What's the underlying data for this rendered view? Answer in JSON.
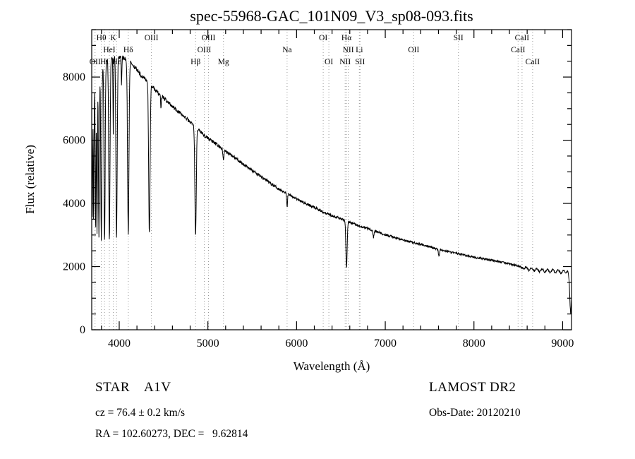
{
  "footer": {
    "class_label": "STAR    A1V",
    "cz": "cz = 76.4 ± 0.2 km/s",
    "radec": "RA = 102.60273, DEC =   9.62814",
    "survey": "LAMOST DR2",
    "obs_date": "Obs-Date: 20120210"
  },
  "chart_data": {
    "type": "line",
    "title": "spec-55968-GAC_101N09_V3_sp08-093.fits",
    "xlabel": "Wavelength (Å)",
    "ylabel": "Flux (relative)",
    "xlim": [
      3690,
      9100
    ],
    "ylim": [
      0,
      9500
    ],
    "x_major_ticks": [
      4000,
      5000,
      6000,
      7000,
      8000,
      9000
    ],
    "x_minor_step": 200,
    "y_major_ticks": [
      0,
      2000,
      4000,
      6000,
      8000
    ],
    "y_minor_step": 500,
    "grid": false,
    "line_color": "#000000",
    "guide_line_color": "#999999",
    "spectral_line_annotations": [
      {
        "label": "Hθ",
        "wavelength": 3798,
        "row": 0
      },
      {
        "label": "K",
        "wavelength": 3933,
        "row": 0
      },
      {
        "label": "OIII",
        "wavelength": 4363,
        "row": 0
      },
      {
        "label": "OIII",
        "wavelength": 5007,
        "row": 0
      },
      {
        "label": "OI",
        "wavelength": 6300,
        "row": 0
      },
      {
        "label": "Hα",
        "wavelength": 6563,
        "row": 0
      },
      {
        "label": "SII",
        "wavelength": 7825,
        "row": 0
      },
      {
        "label": "CaII",
        "wavelength": 8542,
        "row": 0
      },
      {
        "label": "HeI",
        "wavelength": 3889,
        "row": 1
      },
      {
        "label": "Hδ",
        "wavelength": 4102,
        "row": 1
      },
      {
        "label": "OIII",
        "wavelength": 4959,
        "row": 1
      },
      {
        "label": "Na",
        "wavelength": 5893,
        "row": 1
      },
      {
        "label": "NII",
        "wavelength": 6583,
        "row": 1
      },
      {
        "label": "Li",
        "wavelength": 6708,
        "row": 1
      },
      {
        "label": "OII",
        "wavelength": 7320,
        "row": 1
      },
      {
        "label": "CaII",
        "wavelength": 8498,
        "row": 1
      },
      {
        "label": "OII",
        "wavelength": 3727,
        "row": 2
      },
      {
        "label": "HI",
        "wavelength": 3835,
        "row": 2
      },
      {
        "label": "Hε",
        "wavelength": 3970,
        "row": 2
      },
      {
        "label": "Hβ",
        "wavelength": 4861,
        "row": 2
      },
      {
        "label": "Mg",
        "wavelength": 5175,
        "row": 2
      },
      {
        "label": "OI",
        "wavelength": 6364,
        "row": 2
      },
      {
        "label": "NII",
        "wavelength": 6548,
        "row": 2
      },
      {
        "label": "SII",
        "wavelength": 6716,
        "row": 2
      },
      {
        "label": "CaII",
        "wavelength": 8662,
        "row": 2
      }
    ],
    "series": [
      {
        "name": "spectrum",
        "sample_step_angstrom": 3,
        "noise_amplitude": 45,
        "continuum_points": [
          [
            3690,
            6600
          ],
          [
            3710,
            7400
          ],
          [
            3730,
            7800
          ],
          [
            3750,
            8000
          ],
          [
            3775,
            8150
          ],
          [
            3800,
            8300
          ],
          [
            3830,
            8420
          ],
          [
            3860,
            8520
          ],
          [
            3900,
            8600
          ],
          [
            3950,
            8650
          ],
          [
            4000,
            8650
          ],
          [
            4060,
            8600
          ],
          [
            4120,
            8500
          ],
          [
            4180,
            8300
          ],
          [
            4240,
            8060
          ],
          [
            4300,
            7920
          ],
          [
            4360,
            7740
          ],
          [
            4420,
            7550
          ],
          [
            4480,
            7380
          ],
          [
            4540,
            7230
          ],
          [
            4600,
            7080
          ],
          [
            4660,
            6930
          ],
          [
            4720,
            6780
          ],
          [
            4780,
            6630
          ],
          [
            4840,
            6480
          ],
          [
            4900,
            6320
          ],
          [
            4960,
            6150
          ],
          [
            5020,
            6030
          ],
          [
            5080,
            5900
          ],
          [
            5140,
            5780
          ],
          [
            5200,
            5650
          ],
          [
            5260,
            5530
          ],
          [
            5320,
            5410
          ],
          [
            5380,
            5290
          ],
          [
            5440,
            5160
          ],
          [
            5500,
            5040
          ],
          [
            5560,
            4920
          ],
          [
            5620,
            4810
          ],
          [
            5680,
            4690
          ],
          [
            5740,
            4570
          ],
          [
            5800,
            4460
          ],
          [
            5860,
            4370
          ],
          [
            5920,
            4280
          ],
          [
            5980,
            4180
          ],
          [
            6040,
            4080
          ],
          [
            6100,
            4000
          ],
          [
            6160,
            3920
          ],
          [
            6220,
            3850
          ],
          [
            6280,
            3760
          ],
          [
            6340,
            3690
          ],
          [
            6400,
            3620
          ],
          [
            6460,
            3560
          ],
          [
            6520,
            3490
          ],
          [
            6580,
            3420
          ],
          [
            6640,
            3360
          ],
          [
            6700,
            3300
          ],
          [
            6760,
            3240
          ],
          [
            6820,
            3190
          ],
          [
            6880,
            3130
          ],
          [
            6940,
            3070
          ],
          [
            7000,
            3010
          ],
          [
            7080,
            2940
          ],
          [
            7160,
            2870
          ],
          [
            7240,
            2810
          ],
          [
            7320,
            2760
          ],
          [
            7400,
            2700
          ],
          [
            7480,
            2640
          ],
          [
            7560,
            2580
          ],
          [
            7640,
            2520
          ],
          [
            7720,
            2470
          ],
          [
            7800,
            2420
          ],
          [
            7880,
            2370
          ],
          [
            7960,
            2320
          ],
          [
            8040,
            2280
          ],
          [
            8120,
            2240
          ],
          [
            8200,
            2200
          ],
          [
            8280,
            2160
          ],
          [
            8360,
            2110
          ],
          [
            8440,
            2060
          ],
          [
            8520,
            2000
          ],
          [
            8560,
            1930
          ],
          [
            8590,
            1990
          ],
          [
            8620,
            1870
          ],
          [
            8650,
            1970
          ],
          [
            8680,
            1850
          ],
          [
            8710,
            1950
          ],
          [
            8740,
            1830
          ],
          [
            8770,
            1940
          ],
          [
            8800,
            1810
          ],
          [
            8830,
            1930
          ],
          [
            8860,
            1790
          ],
          [
            8890,
            1920
          ],
          [
            8920,
            1780
          ],
          [
            8950,
            1910
          ],
          [
            8980,
            1770
          ],
          [
            9010,
            1890
          ],
          [
            9040,
            1800
          ],
          [
            9060,
            1870
          ],
          [
            9075,
            1500
          ],
          [
            9085,
            700
          ],
          [
            9092,
            450
          ],
          [
            9100,
            1000
          ]
        ],
        "absorption_lines": [
          {
            "center": 3697,
            "depth": 0.5,
            "width": 5
          },
          {
            "center": 3712,
            "depth": 0.55,
            "width": 5
          },
          {
            "center": 3734,
            "depth": 0.6,
            "width": 6
          },
          {
            "center": 3750,
            "depth": 0.62,
            "width": 6
          },
          {
            "center": 3771,
            "depth": 0.64,
            "width": 7
          },
          {
            "center": 3798,
            "depth": 0.66,
            "width": 8
          },
          {
            "center": 3835,
            "depth": 0.67,
            "width": 9
          },
          {
            "center": 3889,
            "depth": 0.67,
            "width": 10
          },
          {
            "center": 3933,
            "depth": 0.28,
            "width": 5
          },
          {
            "center": 3970,
            "depth": 0.67,
            "width": 10
          },
          {
            "center": 4026,
            "depth": 0.1,
            "width": 5
          },
          {
            "center": 4102,
            "depth": 0.65,
            "width": 11
          },
          {
            "center": 4340,
            "depth": 0.61,
            "width": 11
          },
          {
            "center": 4471,
            "depth": 0.06,
            "width": 5
          },
          {
            "center": 4861,
            "depth": 0.54,
            "width": 11
          },
          {
            "center": 5175,
            "depth": 0.06,
            "width": 8
          },
          {
            "center": 5893,
            "depth": 0.1,
            "width": 7
          },
          {
            "center": 6563,
            "depth": 0.43,
            "width": 10
          },
          {
            "center": 6867,
            "depth": 0.07,
            "width": 8
          },
          {
            "center": 7605,
            "depth": 0.08,
            "width": 9
          }
        ]
      }
    ]
  }
}
